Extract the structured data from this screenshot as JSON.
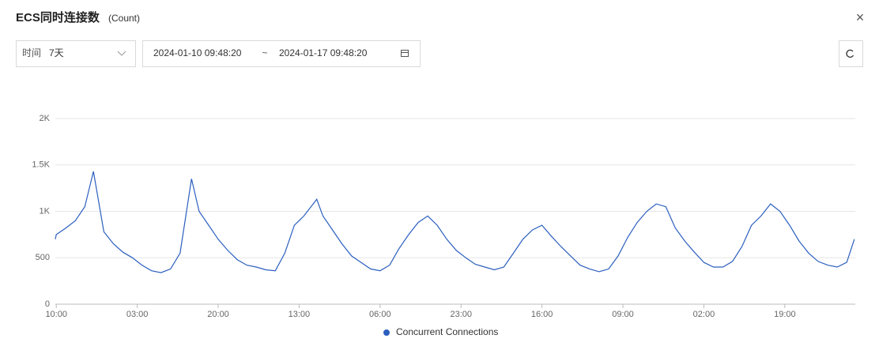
{
  "header": {
    "title": "ECS同时连接数",
    "unit": "(Count)",
    "close": "×"
  },
  "controls": {
    "period_label": "时间",
    "period_value": "7天",
    "start": "2024-01-10 09:48:20",
    "separator": "~",
    "end": "2024-01-17 09:48:20"
  },
  "chart_data": {
    "type": "line",
    "x": [
      -0.2,
      0,
      2,
      4,
      6,
      7.8,
      10,
      12,
      14,
      16,
      18,
      20,
      22,
      24,
      26,
      28.4,
      30,
      32,
      34,
      36,
      38,
      40,
      42,
      44,
      46,
      48,
      50,
      52,
      54.7,
      56,
      58,
      60,
      62,
      64,
      66,
      68,
      70,
      72,
      74,
      76,
      78,
      80,
      82,
      84,
      86,
      88,
      90,
      92,
      94,
      96,
      98,
      100,
      102,
      104,
      106,
      108,
      110,
      112,
      114,
      116,
      118,
      120,
      122,
      124,
      126,
      128,
      130,
      132,
      134,
      136,
      138,
      140,
      142,
      144,
      146,
      148,
      150,
      152,
      154,
      156,
      158,
      160,
      162,
      164,
      166,
      167.6
    ],
    "series": [
      {
        "name": "Concurrent Connections",
        "color": "#2b5fbf",
        "values": [
          700,
          750,
          820,
          900,
          1050,
          1430,
          780,
          650,
          560,
          500,
          420,
          360,
          340,
          380,
          550,
          1350,
          1000,
          850,
          700,
          580,
          480,
          420,
          400,
          370,
          360,
          550,
          850,
          950,
          1130,
          950,
          800,
          650,
          520,
          450,
          380,
          360,
          420,
          600,
          750,
          880,
          950,
          850,
          700,
          580,
          500,
          430,
          400,
          370,
          400,
          550,
          700,
          800,
          850,
          730,
          620,
          520,
          420,
          380,
          350,
          380,
          520,
          720,
          880,
          1000,
          1080,
          1050,
          820,
          680,
          560,
          450,
          400,
          400,
          460,
          620,
          850,
          950,
          1080,
          1000,
          850,
          680,
          550,
          460,
          420,
          400,
          450,
          700
        ]
      }
    ],
    "xlim": [
      -0.2,
      167.8
    ],
    "xticks": [
      {
        "value": 0,
        "label": "10:00"
      },
      {
        "value": 17,
        "label": "03:00"
      },
      {
        "value": 34,
        "label": "20:00"
      },
      {
        "value": 51,
        "label": "13:00"
      },
      {
        "value": 68,
        "label": "06:00"
      },
      {
        "value": 85,
        "label": "23:00"
      },
      {
        "value": 102,
        "label": "16:00"
      },
      {
        "value": 119,
        "label": "09:00"
      },
      {
        "value": 136,
        "label": "02:00"
      },
      {
        "value": 153,
        "label": "19:00"
      }
    ],
    "ylim": [
      0,
      2000
    ],
    "yticks": [
      0,
      500,
      {
        "value": 1000,
        "label": "1K"
      },
      {
        "value": 1500,
        "label": "1.5K"
      },
      {
        "value": 2000,
        "label": "2K"
      }
    ],
    "grid": true
  }
}
